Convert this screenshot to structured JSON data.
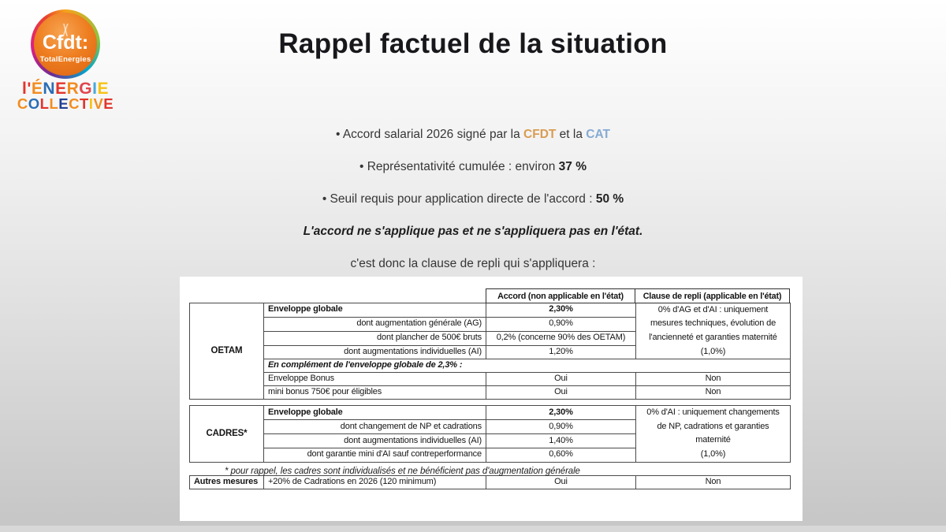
{
  "slide": {
    "title": "Rappel factuel de la situation"
  },
  "logo": {
    "circle_title": "Cfdt:",
    "circle_subtitle": "TotalEnergies",
    "wordmark_line1": [
      {
        "ch": "l'",
        "color": "#e2342b"
      },
      {
        "ch": "É",
        "color": "#f28c1f"
      },
      {
        "ch": "N",
        "color": "#2a6db5"
      },
      {
        "ch": "E",
        "color": "#e2342b"
      },
      {
        "ch": "R",
        "color": "#f28c1f"
      },
      {
        "ch": "G",
        "color": "#e0454f"
      },
      {
        "ch": "I",
        "color": "#49a8d8"
      },
      {
        "ch": "E",
        "color": "#f6c214"
      }
    ],
    "wordmark_line2": [
      {
        "ch": "C",
        "color": "#f28c1f"
      },
      {
        "ch": "O",
        "color": "#2a6db5"
      },
      {
        "ch": "L",
        "color": "#e2342b"
      },
      {
        "ch": "L",
        "color": "#f28c1f"
      },
      {
        "ch": "E",
        "color": "#223f94"
      },
      {
        "ch": "C",
        "color": "#f28c1f"
      },
      {
        "ch": "T",
        "color": "#e2342b"
      },
      {
        "ch": "I",
        "color": "#f6c214"
      },
      {
        "ch": "V",
        "color": "#f28c1f"
      },
      {
        "ch": "E",
        "color": "#e2342b"
      }
    ]
  },
  "colors": {
    "cfdt_orange": "#d99c52",
    "cat_blue": "#85abd3",
    "title_dark": "#18181c"
  },
  "intro": {
    "line1": [
      {
        "t": "• Accord salarial 2026 signé par la "
      },
      {
        "t": "CFDT",
        "s": "cfdt"
      },
      {
        "t": " et la "
      },
      {
        "t": "CAT",
        "s": "cat"
      }
    ],
    "line2": [
      {
        "t": "• Représentativité cumulée : environ "
      },
      {
        "t": "37 %",
        "s": "b"
      }
    ],
    "line3": [
      {
        "t": "• Seuil requis pour application directe de l'accord : "
      },
      {
        "t": "50 %",
        "s": "b"
      }
    ],
    "line4": "L'accord ne s'applique pas et ne s'appliquera pas en l'état.",
    "line5": "c'est donc la clause de repli qui s'appliquera :"
  },
  "table": {
    "header": {
      "accord": "Accord (non applicable en l'état)",
      "clause": "Clause de repli (applicable en l'état)"
    },
    "oetam": {
      "group": "OETAM",
      "rows": [
        {
          "label": "Enveloppe globale",
          "value": "2,30%"
        },
        {
          "label": "dont augmentation générale (AG)",
          "value": "0,90%"
        },
        {
          "label": "dont plancher de 500€ bruts",
          "value": "0,2% (concerne 90% des OETAM)"
        },
        {
          "label": "dont augmentations individuelles (AI)",
          "value": "1,20%"
        }
      ],
      "clause_lines": [
        "0% d'AG et d'AI : uniquement",
        "mesures techniques, évolution de",
        "l'ancienneté et garanties maternité",
        "(1,0%)"
      ],
      "note": "En complément de l'enveloppe globale de 2,3% :",
      "bonus_rows": [
        {
          "label": "Enveloppe Bonus",
          "accord": "Oui",
          "clause": "Non"
        },
        {
          "label": "mini bonus 750€ pour éligibles",
          "accord": "Oui",
          "clause": "Non"
        }
      ]
    },
    "cadres": {
      "group": "CADRES*",
      "rows": [
        {
          "label": "Enveloppe globale",
          "value": "2,30%"
        },
        {
          "label": "dont changement de NP et cadrations",
          "value": "0,90%"
        },
        {
          "label": "dont augmentations individuelles (AI)",
          "value": "1,40%"
        },
        {
          "label": "dont garantie mini d'AI sauf contreperformance",
          "value": "0,60%"
        }
      ],
      "clause_lines": [
        "0% d'AI : uniquement changements",
        "de NP, cadrations et garanties",
        "maternité",
        "(1,0%)"
      ]
    },
    "footnote": "* pour rappel, les cadres sont individualisés et ne bénéficient pas d'augmentation générale",
    "autres": {
      "group": "Autres mesures",
      "label": "+20% de Cadrations en 2026 (120 minimum)",
      "accord": "Oui",
      "clause": "Non"
    }
  }
}
